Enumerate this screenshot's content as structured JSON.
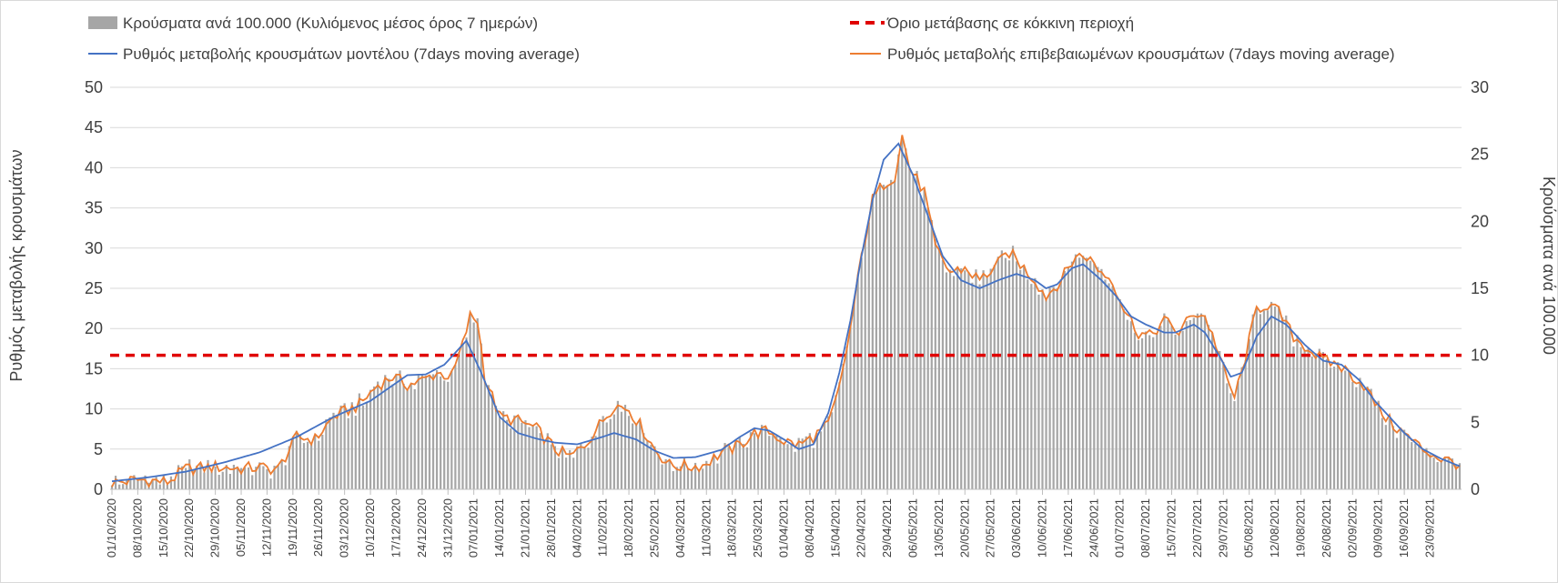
{
  "chart_data": {
    "type": "bar+line",
    "legend": {
      "bars": "Κρούσματα ανά 100.000 (Κυλιόμενος μέσος όρος 7 ημερών)",
      "threshold": "Όριο μετάβασης σε κόκκινη περιοχή",
      "model": "Ρυθμός μεταβολής κρουσμάτων μοντέλου (7days moving average)",
      "confirmed": "Ρυθμός μεταβολής επιβεβαιωμένων κρουσμάτων (7days moving average)"
    },
    "ylabel_left": "Ρυθμός μεταβολής κρουσμάτων",
    "ylabel_right": "Κρούσματα ανά 100.000",
    "ylim_left": [
      0,
      50
    ],
    "ylim_right": [
      0,
      30
    ],
    "yticks_left": [
      "0",
      "5",
      "10",
      "15",
      "20",
      "25",
      "30",
      "35",
      "40",
      "45",
      "50"
    ],
    "yticks_right": [
      "0",
      "5",
      "10",
      "15",
      "20",
      "25",
      "30"
    ],
    "threshold_value": 16.67,
    "num_days": 366,
    "x_tick_labels": [
      "01/10/2020",
      "08/10/2020",
      "15/10/2020",
      "22/10/2020",
      "29/10/2020",
      "05/11/2020",
      "12/11/2020",
      "19/11/2020",
      "26/11/2020",
      "03/12/2020",
      "10/12/2020",
      "17/12/2020",
      "24/12/2020",
      "31/12/2020",
      "07/01/2021",
      "14/01/2021",
      "21/01/2021",
      "28/01/2021",
      "04/02/2021",
      "11/02/2021",
      "18/02/2021",
      "25/02/2021",
      "04/03/2021",
      "11/03/2021",
      "18/03/2021",
      "25/03/2021",
      "01/04/2021",
      "08/04/2021",
      "15/04/2021",
      "22/04/2021",
      "29/04/2021",
      "06/05/2021",
      "13/05/2021",
      "20/05/2021",
      "27/05/2021",
      "03/06/2021",
      "10/06/2021",
      "17/06/2021",
      "24/06/2021",
      "01/07/2021",
      "08/07/2021",
      "15/07/2021",
      "22/07/2021",
      "29/07/2021",
      "05/08/2021",
      "12/08/2021",
      "19/08/2021",
      "26/08/2021",
      "02/09/2021",
      "09/09/2021",
      "16/09/2021",
      "23/09/2021"
    ],
    "model_series_keypoints": [
      [
        0,
        1.0
      ],
      [
        10,
        1.5
      ],
      [
        20,
        2.2
      ],
      [
        30,
        3.3
      ],
      [
        40,
        4.6
      ],
      [
        50,
        6.5
      ],
      [
        60,
        9.0
      ],
      [
        70,
        11.0
      ],
      [
        80,
        14.2
      ],
      [
        85,
        14.3
      ],
      [
        90,
        15.5
      ],
      [
        96,
        18.5
      ],
      [
        100,
        14.5
      ],
      [
        105,
        9.0
      ],
      [
        110,
        7.0
      ],
      [
        115,
        6.3
      ],
      [
        120,
        5.8
      ],
      [
        126,
        5.6
      ],
      [
        132,
        6.4
      ],
      [
        136,
        7.0
      ],
      [
        142,
        6.2
      ],
      [
        147,
        4.8
      ],
      [
        152,
        3.9
      ],
      [
        158,
        4.0
      ],
      [
        165,
        4.9
      ],
      [
        170,
        6.5
      ],
      [
        174,
        7.6
      ],
      [
        178,
        7.3
      ],
      [
        182,
        6.2
      ],
      [
        186,
        5.0
      ],
      [
        190,
        5.6
      ],
      [
        194,
        9.5
      ],
      [
        197,
        14.5
      ],
      [
        200,
        21.0
      ],
      [
        203,
        29.0
      ],
      [
        206,
        36.0
      ],
      [
        209,
        41.0
      ],
      [
        213,
        43.0
      ],
      [
        217,
        39.0
      ],
      [
        221,
        34.0
      ],
      [
        225,
        29.0
      ],
      [
        230,
        26.0
      ],
      [
        235,
        25.0
      ],
      [
        240,
        26.0
      ],
      [
        245,
        26.8
      ],
      [
        250,
        26.0
      ],
      [
        253,
        25.0
      ],
      [
        256,
        25.5
      ],
      [
        260,
        27.5
      ],
      [
        263,
        28.0
      ],
      [
        268,
        26.0
      ],
      [
        272,
        24.0
      ],
      [
        276,
        21.5
      ],
      [
        280,
        20.5
      ],
      [
        285,
        19.5
      ],
      [
        288,
        19.5
      ],
      [
        293,
        20.5
      ],
      [
        296,
        19.5
      ],
      [
        300,
        16.5
      ],
      [
        303,
        14.0
      ],
      [
        306,
        14.5
      ],
      [
        310,
        19.0
      ],
      [
        314,
        21.5
      ],
      [
        318,
        20.5
      ],
      [
        323,
        18.0
      ],
      [
        328,
        16.0
      ],
      [
        333,
        15.5
      ],
      [
        338,
        13.5
      ],
      [
        342,
        11.0
      ],
      [
        346,
        9.0
      ],
      [
        350,
        7.0
      ],
      [
        355,
        5.0
      ],
      [
        360,
        3.8
      ],
      [
        366,
        2.7
      ]
    ],
    "confirmed_series_keypoints": [
      [
        0,
        0.8
      ],
      [
        8,
        1.2
      ],
      [
        15,
        0.9
      ],
      [
        20,
        2.5
      ],
      [
        28,
        2.8
      ],
      [
        35,
        2.6
      ],
      [
        40,
        2.7
      ],
      [
        45,
        2.5
      ],
      [
        50,
        6.5
      ],
      [
        55,
        6.2
      ],
      [
        60,
        9.0
      ],
      [
        67,
        10.5
      ],
      [
        72,
        13.0
      ],
      [
        76,
        14.0
      ],
      [
        80,
        13.0
      ],
      [
        84,
        13.5
      ],
      [
        88,
        14.5
      ],
      [
        92,
        14.0
      ],
      [
        95,
        18.0
      ],
      [
        97,
        21.5
      ],
      [
        99,
        21.0
      ],
      [
        101,
        14.0
      ],
      [
        105,
        9.0
      ],
      [
        110,
        8.5
      ],
      [
        115,
        7.5
      ],
      [
        120,
        5.0
      ],
      [
        124,
        4.0
      ],
      [
        128,
        5.5
      ],
      [
        132,
        8.0
      ],
      [
        136,
        10.5
      ],
      [
        140,
        10.0
      ],
      [
        143,
        8.0
      ],
      [
        147,
        5.0
      ],
      [
        151,
        3.0
      ],
      [
        156,
        2.8
      ],
      [
        160,
        3.0
      ],
      [
        165,
        4.5
      ],
      [
        170,
        5.5
      ],
      [
        174,
        7.0
      ],
      [
        178,
        7.2
      ],
      [
        182,
        6.0
      ],
      [
        186,
        5.5
      ],
      [
        190,
        6.5
      ],
      [
        194,
        8.0
      ],
      [
        197,
        12.5
      ],
      [
        200,
        20.0
      ],
      [
        203,
        29.0
      ],
      [
        206,
        36.0
      ],
      [
        209,
        38.0
      ],
      [
        212,
        39.0
      ],
      [
        214,
        44.0
      ],
      [
        216,
        40.0
      ],
      [
        220,
        37.0
      ],
      [
        223,
        30.0
      ],
      [
        227,
        27.0
      ],
      [
        231,
        27.5
      ],
      [
        235,
        26.0
      ],
      [
        240,
        28.0
      ],
      [
        243,
        29.5
      ],
      [
        246,
        28.0
      ],
      [
        250,
        26.0
      ],
      [
        253,
        24.0
      ],
      [
        257,
        26.0
      ],
      [
        261,
        29.0
      ],
      [
        264,
        29.0
      ],
      [
        268,
        27.0
      ],
      [
        271,
        26.0
      ],
      [
        274,
        22.5
      ],
      [
        278,
        19.5
      ],
      [
        281,
        19.0
      ],
      [
        285,
        21.0
      ],
      [
        289,
        19.5
      ],
      [
        293,
        22.0
      ],
      [
        296,
        21.5
      ],
      [
        299,
        18.0
      ],
      [
        302,
        13.5
      ],
      [
        304,
        11.5
      ],
      [
        306,
        14.5
      ],
      [
        310,
        22.5
      ],
      [
        313,
        23.0
      ],
      [
        316,
        22.0
      ],
      [
        320,
        19.0
      ],
      [
        324,
        17.5
      ],
      [
        328,
        16.0
      ],
      [
        332,
        15.5
      ],
      [
        335,
        14.5
      ],
      [
        339,
        13.0
      ],
      [
        343,
        10.0
      ],
      [
        347,
        8.0
      ],
      [
        351,
        6.5
      ],
      [
        355,
        5.0
      ],
      [
        360,
        3.8
      ],
      [
        366,
        3.0
      ]
    ]
  }
}
